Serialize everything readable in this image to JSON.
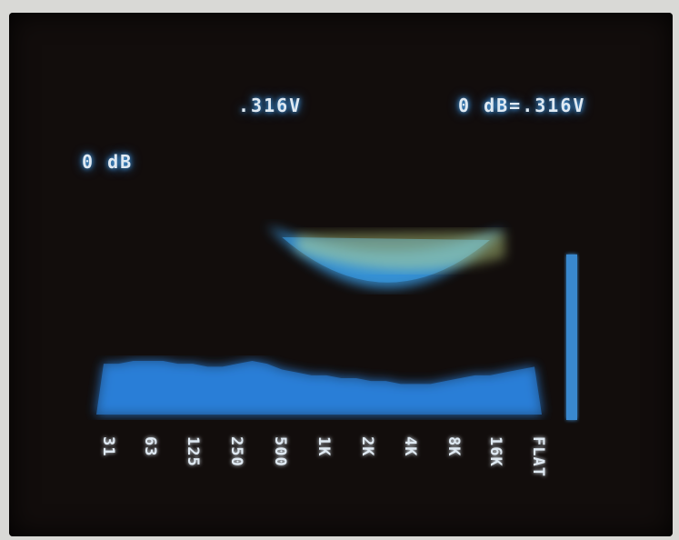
{
  "display": {
    "top_label": ".316V",
    "ref_label": "0 dB=.316V",
    "scale_label": "0 dB"
  },
  "chart_data": {
    "type": "bar",
    "title": "",
    "xlabel": "",
    "ylabel": "",
    "grid": true,
    "ylim": [
      0,
      12
    ],
    "tick_labels": [
      "31",
      "63",
      "125",
      "250",
      "500",
      "1K",
      "2K",
      "4K",
      "8K",
      "16K",
      "FLAT"
    ],
    "series": [
      {
        "values": [
          7.2,
          7.2,
          7.5,
          7.7,
          7.7,
          7.5,
          7.0,
          6.8,
          6.7,
          6.5,
          6.6,
          6.4,
          6.3,
          6.2,
          6.2,
          6.2,
          6.1,
          6.1,
          6.1,
          6.1,
          6.2,
          6.2,
          6.2,
          6.2,
          6.3,
          6.3,
          6.4,
          6.5,
          6.8,
          7.1
        ]
      },
      {
        "values": [
          1.7,
          1.7,
          1.8,
          1.8,
          1.8,
          1.7,
          1.7,
          1.6,
          1.6,
          1.7,
          1.8,
          1.7,
          1.5,
          1.4,
          1.3,
          1.3,
          1.2,
          1.2,
          1.1,
          1.1,
          1.0,
          1.0,
          1.0,
          1.1,
          1.2,
          1.3,
          1.3,
          1.4,
          1.5,
          1.6
        ]
      }
    ],
    "flat_bar": {
      "peak": 10.5,
      "fill": 5.5
    },
    "colors": {
      "grid": "#4aa8e8",
      "bar_warm": "#f3d9b8",
      "bar_green": "#c9e08a",
      "bar_blue": "#3f9ef0",
      "fill_blue": "#2b86e6",
      "overlay_blue": "#3aa2ee",
      "label": "#dfe9f2"
    }
  }
}
